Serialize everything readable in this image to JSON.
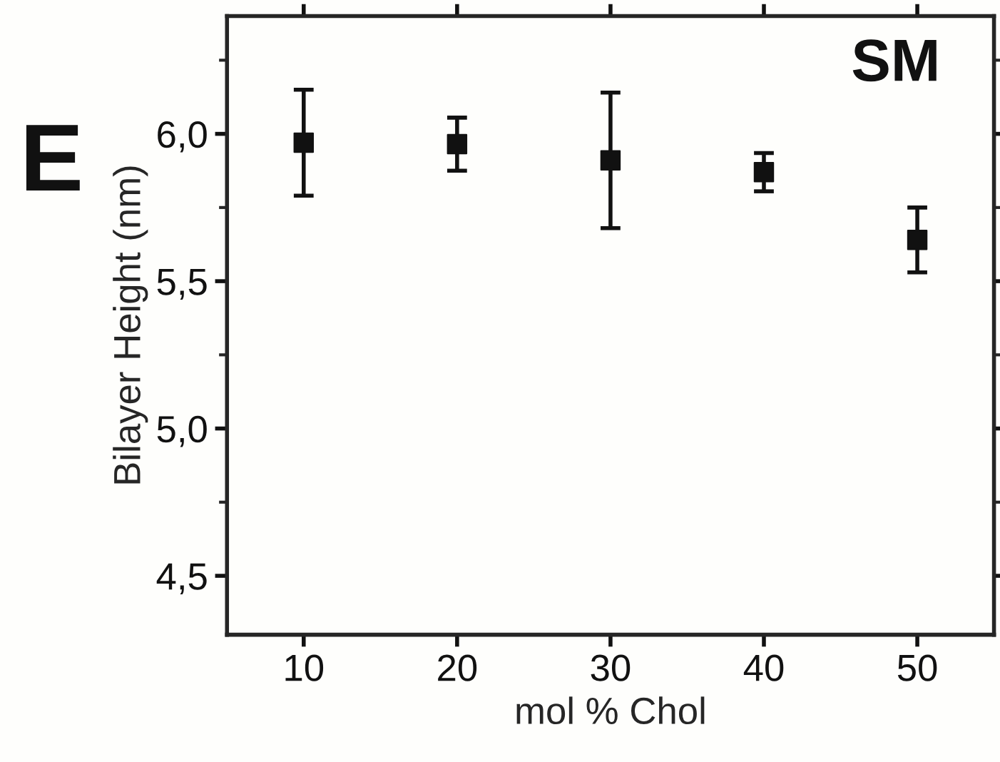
{
  "chart_data": {
    "type": "scatter",
    "xlabel": "mol % Chol",
    "ylabel": "Bilayer Height (nm)",
    "annotations": [
      "E",
      "SM"
    ],
    "x": [
      10,
      20,
      30,
      40,
      50
    ],
    "series": [
      {
        "color": "#111111",
        "values": [
          5.97,
          5.965,
          5.91,
          5.87,
          5.64
        ],
        "errors": [
          0.18,
          0.09,
          0.23,
          0.065,
          0.11
        ]
      }
    ],
    "xlim": [
      5,
      55
    ],
    "xticks": [
      10,
      20,
      30,
      40,
      50
    ],
    "ylim": [
      4.3,
      6.4
    ],
    "yticks": [
      {
        "value": 4.5,
        "label": "4,5"
      },
      {
        "value": 5.0,
        "label": "5,0"
      },
      {
        "value": 5.5,
        "label": "5,5"
      },
      {
        "value": 6.0,
        "label": "6,0"
      }
    ],
    "marker": "square",
    "grid": false,
    "legend": false
  }
}
